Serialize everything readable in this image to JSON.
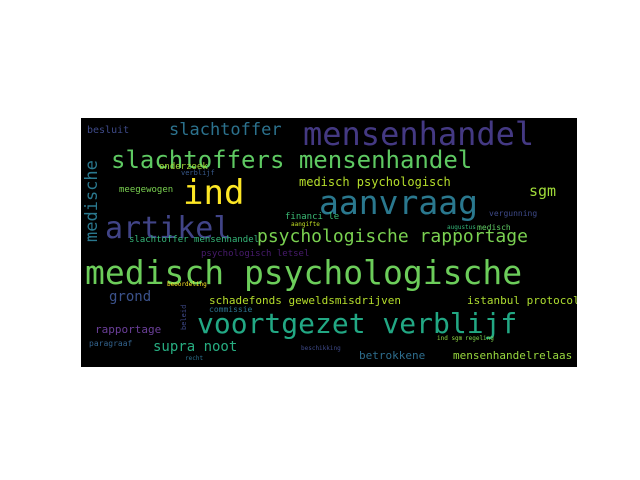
{
  "words": [
    {
      "text": "mensenhandel",
      "color": "#443983"
    },
    {
      "text": "slachtoffers mensenhandel",
      "color": "#5ec962"
    },
    {
      "text": "ind",
      "color": "#fde725"
    },
    {
      "text": "aanvraag",
      "color": "#2a788e"
    },
    {
      "text": "artikel",
      "color": "#414487"
    },
    {
      "text": "psychologische rapportage",
      "color": "#7ad151"
    },
    {
      "text": "medisch psychologische",
      "color": "#6ccd5a"
    },
    {
      "text": "voortgezet verblijf",
      "color": "#22a884"
    },
    {
      "text": "slachtoffer",
      "color": "#2c728e"
    },
    {
      "text": "medische",
      "color": "#2a788e"
    },
    {
      "text": "medisch psychologisch",
      "color": "#b5de2b"
    },
    {
      "text": "sgm",
      "color": "#a0da39"
    },
    {
      "text": "grond",
      "color": "#3b528b"
    },
    {
      "text": "schadefonds geweldsmisdrijven",
      "color": "#b5de2b"
    },
    {
      "text": "istanbul protocol",
      "color": "#addc30"
    },
    {
      "text": "supra noot",
      "color": "#27ad81"
    },
    {
      "text": "rapportage",
      "color": "#6b3f9a"
    },
    {
      "text": "betrokkene",
      "color": "#2e6e8e"
    },
    {
      "text": "mensenhandelrelaas",
      "color": "#98d83e"
    },
    {
      "text": "besluit",
      "color": "#3e4a89"
    },
    {
      "text": "slachtoffer mensenhandel",
      "color": "#35b779"
    },
    {
      "text": "meegewogen",
      "color": "#7ad151"
    },
    {
      "text": "onderzoek",
      "color": "#a2da37"
    },
    {
      "text": "verblijf",
      "color": "#38598c"
    },
    {
      "text": "financi le",
      "color": "#3bbb75"
    },
    {
      "text": "commissie",
      "color": "#2c728e"
    },
    {
      "text": "paragraaf",
      "color": "#33638d"
    },
    {
      "text": "psychologisch letsel",
      "color": "#481b6d"
    },
    {
      "text": "beleid",
      "color": "#3e4989"
    },
    {
      "text": "vergunning",
      "color": "#3e4a89"
    },
    {
      "text": "medisch",
      "color": "#5ec962"
    },
    {
      "text": "regeling",
      "color": "#7fd34e"
    },
    {
      "text": "beoordeling",
      "color": "#fde725"
    },
    {
      "text": "aangifte",
      "color": "#c2df23"
    },
    {
      "text": "augustus",
      "color": "#35b779"
    },
    {
      "text": "ind sgm",
      "color": "#90d743"
    },
    {
      "text": "recht",
      "color": "#2d718e"
    },
    {
      "text": "beschikking",
      "color": "#3e4a89"
    }
  ]
}
